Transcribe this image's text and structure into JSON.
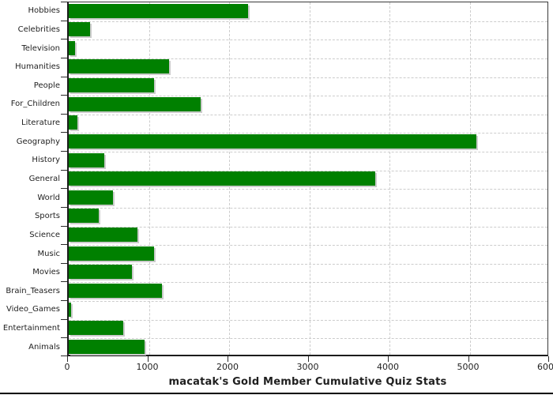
{
  "chart_data": {
    "type": "bar",
    "orientation": "horizontal",
    "title": "macatak's Gold Member Cumulative Quiz Stats",
    "categories": [
      "Hobbies",
      "Celebrities",
      "Television",
      "Humanities",
      "People",
      "For_Children",
      "Literature",
      "Geography",
      "History",
      "General",
      "World",
      "Sports",
      "Science",
      "Music",
      "Movies",
      "Brain_Teasers",
      "Video_Games",
      "Entertainment",
      "Animals"
    ],
    "values": [
      2240,
      270,
      80,
      1250,
      1060,
      1650,
      105,
      5080,
      445,
      3820,
      555,
      370,
      855,
      1060,
      790,
      1160,
      30,
      675,
      950
    ],
    "xlim": [
      0,
      6000
    ],
    "x_tick_values": [
      0,
      1000,
      2000,
      3000,
      4000,
      5000,
      6000
    ],
    "x_tick_labels": [
      "0",
      "1000",
      "2000",
      "3000",
      "4000",
      "5000",
      "6000"
    ],
    "grid": "dashed, vertical at x ticks and horizontal at category boundaries",
    "legend_position": "none",
    "bar_color": "#008000",
    "bar_shadow_color": "#cccccc",
    "grid_color": "#cccccc",
    "axis_color": "#1c1c1c",
    "text_color": "#1f1f1f"
  }
}
